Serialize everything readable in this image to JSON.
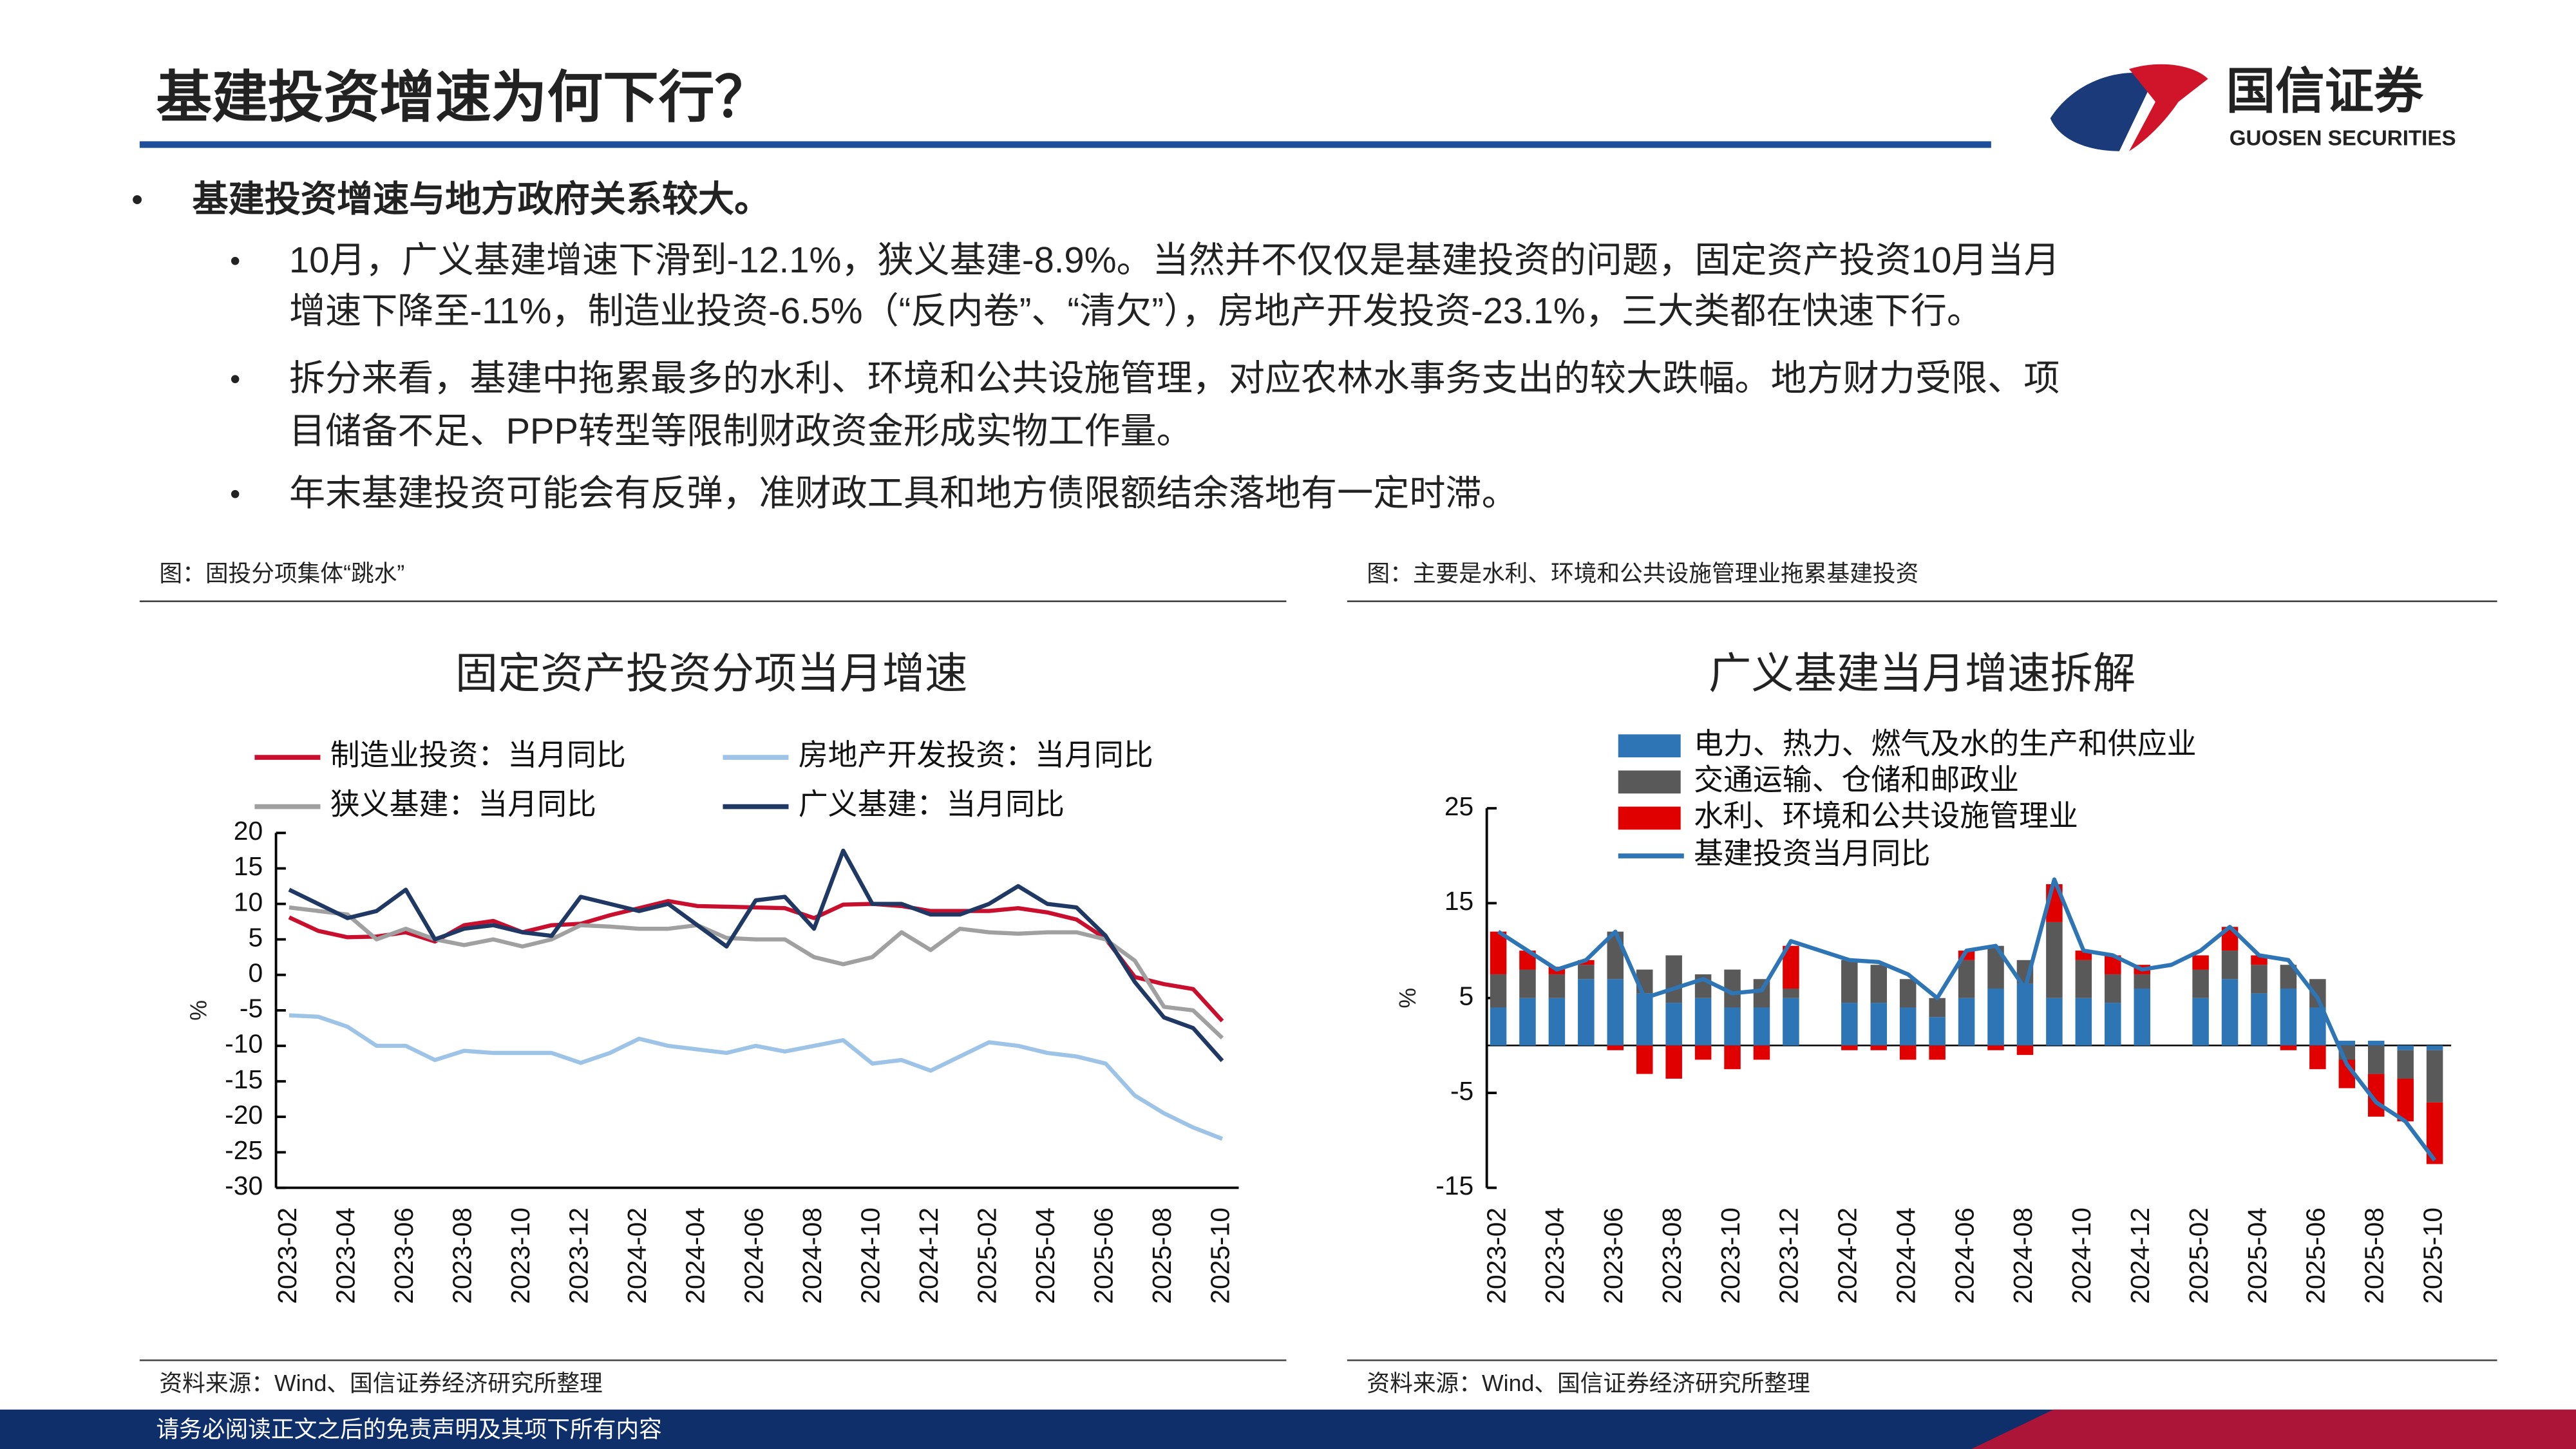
{
  "header": {
    "title": "基建投资增速为何下行？",
    "logo_cn": "国信证券",
    "logo_en": "GUOSEN SECURITIES"
  },
  "bullets": {
    "main": "基建投资增速与地方政府关系较大。",
    "sub": [
      [
        "10月，广义基建增速下滑到-12.1%，狭义基建-8.9%。当然并不仅仅是基建投资的问题，固定资产投资10月当月",
        "增速下降至-11%，制造业投资-6.5%（“反内卷”、“清欠”），房地产开发投资-23.1%，三大类都在快速下行。"
      ],
      [
        "拆分来看，基建中拖累最多的水利、环境和公共设施管理，对应农林水事务支出的较大跌幅。地方财力受限、项",
        "目储备不足、PPP转型等限制财政资金形成实物工作量。"
      ],
      [
        "年末基建投资可能会有反弹，准财政工具和地方债限额结余落地有一定时滞。"
      ]
    ]
  },
  "figures": [
    {
      "caption": "图：固投分项集体“跳水”",
      "source": "资料来源：Wind、国信证券经济研究所整理"
    },
    {
      "caption": "图：主要是水利、环境和公共设施管理业拖累基建投资",
      "source": "资料来源：Wind、国信证券经济研究所整理"
    }
  ],
  "footer": "请务必阅读正文之后的免责声明及其项下所有内容",
  "chart_data": [
    {
      "type": "line",
      "title": "固定资产投资分项当月增速",
      "y_label": "%",
      "categories": [
        "2023-02",
        null,
        "2023-04",
        null,
        "2023-06",
        null,
        "2023-08",
        null,
        "2023-10",
        null,
        "2023-12",
        null,
        "2024-02",
        null,
        "2024-04",
        null,
        "2024-06",
        null,
        "2024-08",
        null,
        "2024-10",
        null,
        "2024-12",
        null,
        "2025-02",
        null,
        "2025-04",
        null,
        "2025-06",
        null,
        "2025-08",
        null,
        "2025-10"
      ],
      "ylim": [
        -30,
        20
      ],
      "yticks": [
        -30,
        -25,
        -20,
        -15,
        -10,
        -5,
        0,
        5,
        10,
        15,
        20
      ],
      "series": [
        {
          "name": "制造业投资：当月同比",
          "color": "#c8102e",
          "values": [
            8.1,
            6.2,
            5.3,
            5.4,
            6.0,
            4.7,
            7.0,
            7.6,
            6.0,
            7.0,
            7.2,
            8.4,
            9.4,
            10.4,
            9.7,
            9.6,
            9.5,
            9.4,
            8.0,
            9.9,
            10.0,
            9.7,
            9.0,
            9.0,
            9.0,
            9.4,
            8.8,
            7.8,
            5.1,
            -0.3,
            -1.3,
            -2.0,
            -6.5
          ]
        },
        {
          "name": "房地产开发投资：当月同比",
          "color": "#9dc3e6",
          "values": [
            -5.7,
            -5.9,
            -7.3,
            -10,
            -10,
            -12,
            -10.7,
            -11,
            -11,
            -11,
            -12.4,
            -11,
            -9,
            -10,
            -10.5,
            -11,
            -10,
            -10.8,
            -10,
            -9.2,
            -12.5,
            -12,
            -13.5,
            -11.5,
            -9.5,
            -10,
            -11,
            -11.5,
            -12.5,
            -17,
            -19.5,
            -21.5,
            -23.1
          ]
        },
        {
          "name": "狭义基建：当月同比",
          "color": "#a0a0a0",
          "values": [
            9.5,
            9,
            8.5,
            5,
            6.5,
            5,
            4.2,
            5,
            4,
            5,
            7,
            6.8,
            6.5,
            6.5,
            7,
            5.2,
            5,
            5,
            2.5,
            1.5,
            2.5,
            6,
            3.5,
            6.5,
            6,
            5.8,
            6,
            6,
            5,
            2,
            -4.5,
            -5,
            -8.9
          ]
        },
        {
          "name": "广义基建：当月同比",
          "color": "#1f3864",
          "values": [
            12,
            10,
            8,
            9,
            12,
            5,
            6.5,
            7,
            6,
            5.5,
            11,
            10,
            9,
            10,
            7,
            4,
            10.5,
            11,
            6.5,
            17.5,
            10,
            10,
            8.5,
            8.5,
            10,
            12.5,
            10,
            9.5,
            5.5,
            -1,
            -6,
            -7.5,
            -12.1
          ]
        }
      ],
      "legend": "top",
      "grid": false
    },
    {
      "type": "bar",
      "stacked": true,
      "title": "广义基建当月增速拆解",
      "y_label": "%",
      "categories": [
        "2023-02",
        null,
        "2023-04",
        null,
        "2023-06",
        null,
        "2023-08",
        null,
        "2023-10",
        null,
        "2023-12",
        null,
        "2024-02",
        null,
        "2024-04",
        null,
        "2024-06",
        null,
        "2024-08",
        null,
        "2024-10",
        null,
        "2024-12",
        null,
        "2025-02",
        null,
        "2025-04",
        null,
        "2025-06",
        null,
        "2025-08",
        null,
        "2025-10"
      ],
      "ylim": [
        -15,
        25
      ],
      "yticks": [
        -15,
        -5,
        5,
        15,
        25
      ],
      "series": [
        {
          "name": "电力、热力、燃气及水的生产和供应业",
          "color": "#2e75b6",
          "values": [
            4,
            5,
            5,
            7,
            7,
            5.5,
            4.5,
            5,
            4,
            4,
            5,
            null,
            4.5,
            4.5,
            4,
            3,
            5,
            6,
            6.5,
            5,
            5,
            4.5,
            6,
            null,
            5,
            7,
            5.5,
            6,
            4,
            0.5,
            0.5,
            -0.5,
            -0.5
          ]
        },
        {
          "name": "交通运输、仓储和邮政业",
          "color": "#595959",
          "values": [
            3.5,
            3,
            2.5,
            1.5,
            5,
            2.5,
            5,
            2.5,
            4,
            3,
            1,
            null,
            4.5,
            4,
            3,
            2,
            4,
            4.5,
            2.5,
            8,
            4,
            3,
            1.5,
            null,
            3,
            3,
            3,
            2.5,
            3,
            -1.5,
            -3,
            -3,
            -5.5
          ]
        },
        {
          "name": "水利、环境和公共设施管理业",
          "color": "#e00000",
          "values": [
            4.5,
            2,
            0.8,
            0.5,
            -0.5,
            -3,
            -3.5,
            -1.5,
            -2.5,
            -1.5,
            4.5,
            null,
            -0.5,
            -0.5,
            -1.5,
            -1.5,
            1,
            -0.5,
            -1,
            4,
            1,
            2,
            1,
            null,
            1.5,
            2.5,
            1,
            -0.5,
            -2.5,
            -3,
            -4.5,
            -4.5,
            -6.5
          ]
        },
        {
          "name": "基建投资当月同比",
          "type": "line",
          "color": "#2e75b6",
          "values": [
            12,
            10,
            8,
            9,
            12,
            5,
            6,
            7,
            5.5,
            5.8,
            11,
            10,
            9,
            8.8,
            7.5,
            5,
            10,
            10.5,
            6,
            17.5,
            10,
            9.5,
            8,
            8.5,
            10,
            12.5,
            9.5,
            9,
            5,
            -2,
            -6,
            -8,
            -12.1
          ]
        }
      ],
      "legend": "top-left",
      "grid": false
    }
  ]
}
